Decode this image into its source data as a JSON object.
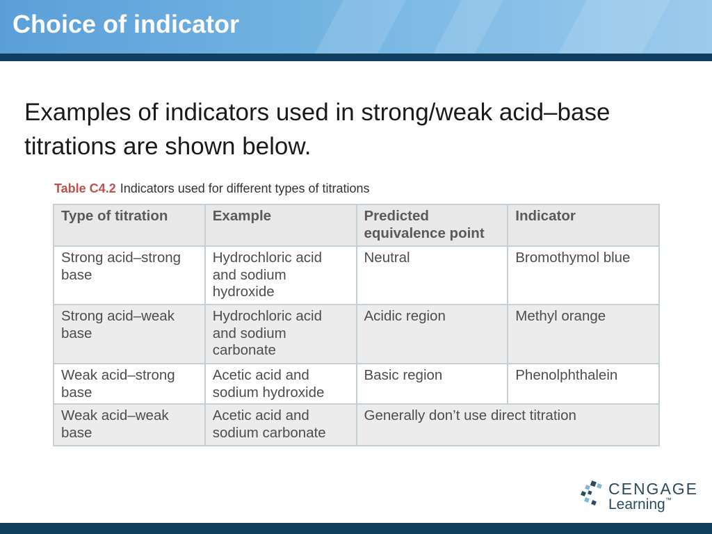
{
  "slide": {
    "title": "Choice of indicator",
    "intro": "Examples of indicators used in strong/weak acid–base titrations are shown below."
  },
  "table": {
    "label": "Table C4.2",
    "caption": "Indicators used for different types of titrations",
    "headers": [
      "Type of titration",
      "Example",
      "Predicted equivalence point",
      "Indicator"
    ],
    "rows": [
      [
        "Strong acid–strong base",
        "Hydrochloric acid and sodium hydroxide",
        "Neutral",
        "Bromothymol blue"
      ],
      [
        "Strong acid–weak base",
        "Hydrochloric acid and sodium carbonate",
        "Acidic region",
        "Methyl orange"
      ],
      [
        "Weak acid–strong base",
        "Acetic acid and sodium hydroxide",
        "Basic region",
        "Phenolphthalein"
      ],
      [
        "Weak acid–weak base",
        "Acetic acid and sodium carbonate",
        "Generally don’t use direct titration"
      ]
    ]
  },
  "logo": {
    "line1": "CENGAGE",
    "line2": "Learning",
    "tm": "™",
    "colors": {
      "dark": "#2c4a5e",
      "light": "#7fb7d6"
    }
  },
  "colors": {
    "header_gradient_start": "#5a9fd8",
    "header_bar": "#103f5e",
    "table_label": "#c0504d",
    "table_border": "#c5cfd6",
    "table_shade": "#ececec"
  }
}
